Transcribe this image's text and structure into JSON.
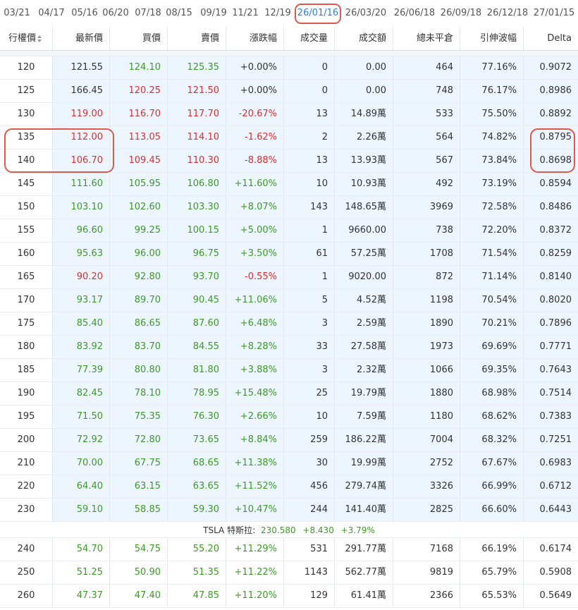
{
  "tabs": [
    {
      "label": "03/21"
    },
    {
      "label": "04/17"
    },
    {
      "label": "05/16"
    },
    {
      "label": "06/20"
    },
    {
      "label": "07/18"
    },
    {
      "label": "08/15"
    },
    {
      "label": "09/19"
    },
    {
      "label": "11/21"
    },
    {
      "label": "12/19"
    },
    {
      "label": "26/01/16",
      "active": true
    },
    {
      "label": "26/03/20"
    },
    {
      "label": "26/06/18"
    },
    {
      "label": "26/09/18"
    },
    {
      "label": "26/12/18"
    },
    {
      "label": "27/01/15"
    }
  ],
  "header": {
    "strike": "行權價",
    "last": "最新價",
    "bid": "買價",
    "ask": "賣價",
    "change": "漲跌幅",
    "volume": "成交量",
    "turnover": "成交額",
    "open_interest": "總未平倉",
    "iv": "引伸波幅",
    "delta": "Delta"
  },
  "rows_itm": [
    {
      "strike": "120",
      "last": "121.55",
      "last_c": "nu",
      "bid": "124.10",
      "bid_c": "up",
      "ask": "125.35",
      "ask_c": "up",
      "chg": "+0.00%",
      "chg_c": "nu",
      "vol": "0",
      "amt": "0.00",
      "oi": "464",
      "iv": "77.16%",
      "delta": "0.9072"
    },
    {
      "strike": "125",
      "last": "166.45",
      "last_c": "nu",
      "bid": "120.25",
      "bid_c": "dn",
      "ask": "121.50",
      "ask_c": "dn",
      "chg": "+0.00%",
      "chg_c": "nu",
      "vol": "0",
      "amt": "0.00",
      "oi": "748",
      "iv": "76.17%",
      "delta": "0.8986"
    },
    {
      "strike": "130",
      "last": "119.00",
      "last_c": "dn",
      "bid": "116.70",
      "bid_c": "dn",
      "ask": "117.70",
      "ask_c": "dn",
      "chg": "-20.67%",
      "chg_c": "dn",
      "vol": "13",
      "amt": "14.89萬",
      "oi": "533",
      "iv": "75.50%",
      "delta": "0.8892"
    },
    {
      "strike": "135",
      "last": "112.00",
      "last_c": "dn",
      "bid": "113.05",
      "bid_c": "dn",
      "ask": "114.10",
      "ask_c": "dn",
      "chg": "-1.62%",
      "chg_c": "dn",
      "vol": "2",
      "amt": "2.26萬",
      "oi": "564",
      "iv": "74.82%",
      "delta": "0.8795"
    },
    {
      "strike": "140",
      "last": "106.70",
      "last_c": "dn",
      "bid": "109.45",
      "bid_c": "dn",
      "ask": "110.30",
      "ask_c": "dn",
      "chg": "-8.88%",
      "chg_c": "dn",
      "vol": "13",
      "amt": "13.93萬",
      "oi": "567",
      "iv": "73.84%",
      "delta": "0.8698"
    },
    {
      "strike": "145",
      "last": "111.60",
      "last_c": "up",
      "bid": "105.95",
      "bid_c": "up",
      "ask": "106.80",
      "ask_c": "up",
      "chg": "+11.60%",
      "chg_c": "up",
      "vol": "10",
      "amt": "10.93萬",
      "oi": "492",
      "iv": "73.19%",
      "delta": "0.8594"
    },
    {
      "strike": "150",
      "last": "103.10",
      "last_c": "up",
      "bid": "102.60",
      "bid_c": "up",
      "ask": "103.30",
      "ask_c": "up",
      "chg": "+8.07%",
      "chg_c": "up",
      "vol": "143",
      "amt": "148.65萬",
      "oi": "3969",
      "iv": "72.58%",
      "delta": "0.8486"
    },
    {
      "strike": "155",
      "last": "96.60",
      "last_c": "up",
      "bid": "99.25",
      "bid_c": "up",
      "ask": "100.15",
      "ask_c": "up",
      "chg": "+5.00%",
      "chg_c": "up",
      "vol": "1",
      "amt": "9660.00",
      "oi": "738",
      "iv": "72.20%",
      "delta": "0.8372"
    },
    {
      "strike": "160",
      "last": "95.63",
      "last_c": "up",
      "bid": "96.00",
      "bid_c": "up",
      "ask": "96.75",
      "ask_c": "up",
      "chg": "+3.50%",
      "chg_c": "up",
      "vol": "61",
      "amt": "57.25萬",
      "oi": "1708",
      "iv": "71.54%",
      "delta": "0.8259"
    },
    {
      "strike": "165",
      "last": "90.20",
      "last_c": "dn",
      "bid": "92.80",
      "bid_c": "up",
      "ask": "93.70",
      "ask_c": "up",
      "chg": "-0.55%",
      "chg_c": "dn",
      "vol": "1",
      "amt": "9020.00",
      "oi": "872",
      "iv": "71.14%",
      "delta": "0.8140"
    },
    {
      "strike": "170",
      "last": "93.17",
      "last_c": "up",
      "bid": "89.70",
      "bid_c": "up",
      "ask": "90.45",
      "ask_c": "up",
      "chg": "+11.06%",
      "chg_c": "up",
      "vol": "5",
      "amt": "4.52萬",
      "oi": "1198",
      "iv": "70.54%",
      "delta": "0.8020"
    },
    {
      "strike": "175",
      "last": "85.40",
      "last_c": "up",
      "bid": "86.65",
      "bid_c": "up",
      "ask": "87.60",
      "ask_c": "up",
      "chg": "+6.48%",
      "chg_c": "up",
      "vol": "3",
      "amt": "2.59萬",
      "oi": "1890",
      "iv": "70.21%",
      "delta": "0.7896"
    },
    {
      "strike": "180",
      "last": "83.92",
      "last_c": "up",
      "bid": "83.70",
      "bid_c": "up",
      "ask": "84.55",
      "ask_c": "up",
      "chg": "+8.28%",
      "chg_c": "up",
      "vol": "33",
      "amt": "27.58萬",
      "oi": "1973",
      "iv": "69.69%",
      "delta": "0.7771"
    },
    {
      "strike": "185",
      "last": "77.39",
      "last_c": "up",
      "bid": "80.80",
      "bid_c": "up",
      "ask": "81.80",
      "ask_c": "up",
      "chg": "+3.88%",
      "chg_c": "up",
      "vol": "3",
      "amt": "2.32萬",
      "oi": "1066",
      "iv": "69.35%",
      "delta": "0.7643"
    },
    {
      "strike": "190",
      "last": "82.45",
      "last_c": "up",
      "bid": "78.10",
      "bid_c": "up",
      "ask": "78.95",
      "ask_c": "up",
      "chg": "+15.48%",
      "chg_c": "up",
      "vol": "25",
      "amt": "19.79萬",
      "oi": "1880",
      "iv": "68.98%",
      "delta": "0.7514"
    },
    {
      "strike": "195",
      "last": "71.50",
      "last_c": "up",
      "bid": "75.35",
      "bid_c": "up",
      "ask": "76.30",
      "ask_c": "up",
      "chg": "+2.66%",
      "chg_c": "up",
      "vol": "10",
      "amt": "7.59萬",
      "oi": "1180",
      "iv": "68.62%",
      "delta": "0.7383"
    },
    {
      "strike": "200",
      "last": "72.92",
      "last_c": "up",
      "bid": "72.80",
      "bid_c": "up",
      "ask": "73.65",
      "ask_c": "up",
      "chg": "+8.84%",
      "chg_c": "up",
      "vol": "259",
      "amt": "186.22萬",
      "oi": "7004",
      "iv": "68.32%",
      "delta": "0.7251"
    },
    {
      "strike": "210",
      "last": "70.00",
      "last_c": "up",
      "bid": "67.75",
      "bid_c": "up",
      "ask": "68.65",
      "ask_c": "up",
      "chg": "+11.38%",
      "chg_c": "up",
      "vol": "30",
      "amt": "19.99萬",
      "oi": "2752",
      "iv": "67.67%",
      "delta": "0.6983"
    },
    {
      "strike": "220",
      "last": "64.40",
      "last_c": "up",
      "bid": "63.15",
      "bid_c": "up",
      "ask": "63.65",
      "ask_c": "up",
      "chg": "+11.52%",
      "chg_c": "up",
      "vol": "456",
      "amt": "279.74萬",
      "oi": "3326",
      "iv": "66.99%",
      "delta": "0.6712"
    },
    {
      "strike": "230",
      "last": "59.10",
      "last_c": "up",
      "bid": "58.85",
      "bid_c": "up",
      "ask": "59.30",
      "ask_c": "up",
      "chg": "+10.47%",
      "chg_c": "up",
      "vol": "244",
      "amt": "141.40萬",
      "oi": "2825",
      "iv": "66.60%",
      "delta": "0.6443"
    }
  ],
  "underlying": {
    "symbol": "TSLA",
    "name": "特斯拉:",
    "price": "230.580",
    "change": "+8.430",
    "pct": "+3.79%"
  },
  "rows_otm": [
    {
      "strike": "240",
      "last": "54.70",
      "last_c": "up",
      "bid": "54.75",
      "bid_c": "up",
      "ask": "55.20",
      "ask_c": "up",
      "chg": "+11.29%",
      "chg_c": "up",
      "vol": "531",
      "amt": "291.77萬",
      "oi": "7168",
      "iv": "66.19%",
      "delta": "0.6174"
    },
    {
      "strike": "250",
      "last": "51.25",
      "last_c": "up",
      "bid": "50.90",
      "bid_c": "up",
      "ask": "51.35",
      "ask_c": "up",
      "chg": "+11.22%",
      "chg_c": "up",
      "vol": "1143",
      "amt": "562.77萬",
      "oi": "9819",
      "iv": "65.79%",
      "delta": "0.5908"
    },
    {
      "strike": "260",
      "last": "47.37",
      "last_c": "up",
      "bid": "47.40",
      "bid_c": "up",
      "ask": "47.85",
      "ask_c": "up",
      "chg": "+11.20%",
      "chg_c": "up",
      "vol": "129",
      "amt": "61.41萬",
      "oi": "2366",
      "iv": "65.53%",
      "delta": "0.5649"
    }
  ]
}
